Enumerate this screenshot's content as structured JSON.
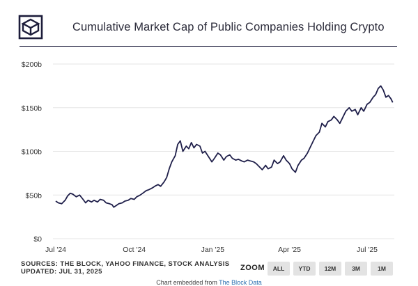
{
  "header": {
    "title": "Cumulative Market Cap of Public Companies Holding Crypto"
  },
  "footer": {
    "sources": "SOURCES: THE BLOCK, YAHOO FINANCE, STOCK ANALYSIS",
    "updated": "UPDATED: JUL 31, 2025",
    "embed_prefix": "Chart embedded from",
    "embed_link": "The Block Data"
  },
  "zoom": {
    "label": "ZOOM",
    "buttons": [
      "ALL",
      "YTD",
      "12M",
      "3M",
      "1M"
    ]
  },
  "colors": {
    "line": "#1f1f4a",
    "grid": "#e6e6e6",
    "zoom_button": "#e3e3e3"
  },
  "chart_data": {
    "type": "line",
    "title": "Cumulative Market Cap of Public Companies Holding Crypto",
    "xlabel": "",
    "ylabel": "",
    "x_ticks": [
      "Jul '24",
      "Oct '24",
      "Jan '25",
      "Apr '25",
      "Jul '25"
    ],
    "y_ticks": [
      "$0",
      "$50b",
      "$100b",
      "$150b",
      "$200b"
    ],
    "ylim": [
      0,
      200
    ],
    "grid": "horizontal",
    "series": [
      {
        "name": "",
        "points": [
          [
            "2024-07-01",
            43
          ],
          [
            "2024-07-04",
            41
          ],
          [
            "2024-07-08",
            40
          ],
          [
            "2024-07-12",
            44
          ],
          [
            "2024-07-15",
            49
          ],
          [
            "2024-07-18",
            52
          ],
          [
            "2024-07-21",
            51
          ],
          [
            "2024-07-25",
            48
          ],
          [
            "2024-07-29",
            50
          ],
          [
            "2024-08-02",
            45
          ],
          [
            "2024-08-05",
            41
          ],
          [
            "2024-08-08",
            44
          ],
          [
            "2024-08-12",
            42
          ],
          [
            "2024-08-15",
            44
          ],
          [
            "2024-08-19",
            42
          ],
          [
            "2024-08-22",
            45
          ],
          [
            "2024-08-26",
            44
          ],
          [
            "2024-08-29",
            41
          ],
          [
            "2024-09-02",
            40
          ],
          [
            "2024-09-05",
            39
          ],
          [
            "2024-09-07",
            36
          ],
          [
            "2024-09-10",
            38
          ],
          [
            "2024-09-13",
            40
          ],
          [
            "2024-09-17",
            41
          ],
          [
            "2024-09-20",
            43
          ],
          [
            "2024-09-24",
            44
          ],
          [
            "2024-09-27",
            46
          ],
          [
            "2024-10-01",
            45
          ],
          [
            "2024-10-04",
            48
          ],
          [
            "2024-10-08",
            50
          ],
          [
            "2024-10-11",
            52
          ],
          [
            "2024-10-15",
            55
          ],
          [
            "2024-10-18",
            56
          ],
          [
            "2024-10-22",
            58
          ],
          [
            "2024-10-25",
            60
          ],
          [
            "2024-10-29",
            62
          ],
          [
            "2024-11-01",
            60
          ],
          [
            "2024-11-05",
            65
          ],
          [
            "2024-11-08",
            70
          ],
          [
            "2024-11-11",
            80
          ],
          [
            "2024-11-14",
            88
          ],
          [
            "2024-11-18",
            95
          ],
          [
            "2024-11-21",
            108
          ],
          [
            "2024-11-24",
            112
          ],
          [
            "2024-11-27",
            100
          ],
          [
            "2024-12-01",
            106
          ],
          [
            "2024-12-04",
            103
          ],
          [
            "2024-12-07",
            110
          ],
          [
            "2024-12-10",
            104
          ],
          [
            "2024-12-13",
            108
          ],
          [
            "2024-12-17",
            106
          ],
          [
            "2024-12-20",
            98
          ],
          [
            "2024-12-23",
            100
          ],
          [
            "2024-12-27",
            94
          ],
          [
            "2024-12-31",
            88
          ],
          [
            "2025-01-03",
            92
          ],
          [
            "2025-01-07",
            98
          ],
          [
            "2025-01-10",
            96
          ],
          [
            "2025-01-14",
            90
          ],
          [
            "2025-01-17",
            94
          ],
          [
            "2025-01-21",
            96
          ],
          [
            "2025-01-24",
            92
          ],
          [
            "2025-01-28",
            90
          ],
          [
            "2025-01-31",
            91
          ],
          [
            "2025-02-04",
            89
          ],
          [
            "2025-02-07",
            88
          ],
          [
            "2025-02-11",
            90
          ],
          [
            "2025-02-14",
            89
          ],
          [
            "2025-02-18",
            88
          ],
          [
            "2025-02-21",
            86
          ],
          [
            "2025-02-25",
            82
          ],
          [
            "2025-02-28",
            79
          ],
          [
            "2025-03-04",
            84
          ],
          [
            "2025-03-07",
            80
          ],
          [
            "2025-03-11",
            82
          ],
          [
            "2025-03-14",
            90
          ],
          [
            "2025-03-18",
            86
          ],
          [
            "2025-03-21",
            88
          ],
          [
            "2025-03-25",
            95
          ],
          [
            "2025-03-28",
            90
          ],
          [
            "2025-04-01",
            86
          ],
          [
            "2025-04-04",
            80
          ],
          [
            "2025-04-08",
            76
          ],
          [
            "2025-04-11",
            84
          ],
          [
            "2025-04-15",
            90
          ],
          [
            "2025-04-18",
            92
          ],
          [
            "2025-04-22",
            98
          ],
          [
            "2025-04-25",
            104
          ],
          [
            "2025-04-29",
            112
          ],
          [
            "2025-05-02",
            118
          ],
          [
            "2025-05-06",
            122
          ],
          [
            "2025-05-09",
            132
          ],
          [
            "2025-05-13",
            128
          ],
          [
            "2025-05-16",
            134
          ],
          [
            "2025-05-20",
            136
          ],
          [
            "2025-05-23",
            140
          ],
          [
            "2025-05-27",
            136
          ],
          [
            "2025-05-30",
            132
          ],
          [
            "2025-06-03",
            140
          ],
          [
            "2025-06-06",
            146
          ],
          [
            "2025-06-10",
            150
          ],
          [
            "2025-06-13",
            146
          ],
          [
            "2025-06-17",
            148
          ],
          [
            "2025-06-20",
            142
          ],
          [
            "2025-06-24",
            150
          ],
          [
            "2025-06-27",
            146
          ],
          [
            "2025-07-01",
            154
          ],
          [
            "2025-07-04",
            156
          ],
          [
            "2025-07-08",
            162
          ],
          [
            "2025-07-11",
            165
          ],
          [
            "2025-07-14",
            172
          ],
          [
            "2025-07-17",
            175
          ],
          [
            "2025-07-20",
            170
          ],
          [
            "2025-07-23",
            162
          ],
          [
            "2025-07-26",
            164
          ],
          [
            "2025-07-29",
            160
          ],
          [
            "2025-07-31",
            156
          ]
        ]
      }
    ]
  }
}
